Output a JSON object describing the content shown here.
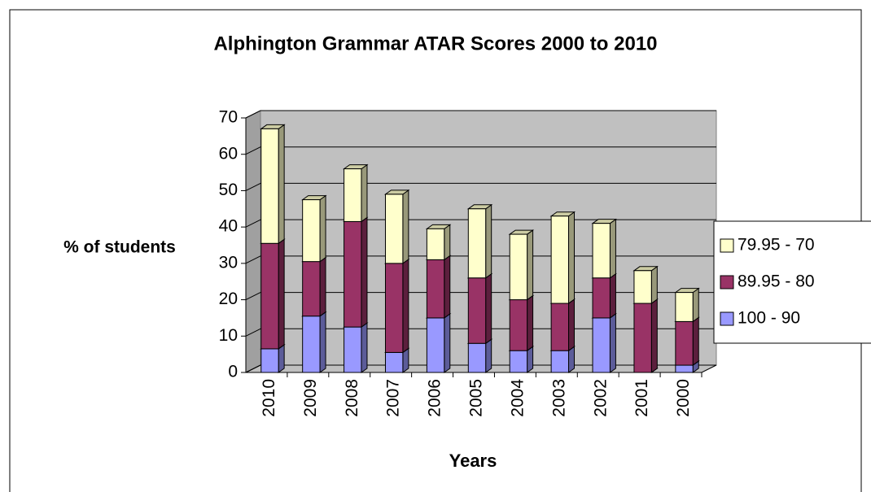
{
  "chart_data": {
    "type": "bar3d_stacked",
    "title": "Alphington Grammar ATAR Scores 2000 to 2010",
    "x_label": "Years",
    "y_label": "% of students",
    "categories": [
      "2010",
      "2009",
      "2008",
      "2007",
      "2006",
      "2005",
      "2004",
      "2003",
      "2002",
      "2001",
      "2000"
    ],
    "series": [
      {
        "name": "100 - 90",
        "color": "#9999ff",
        "values": [
          6.5,
          15.5,
          12.5,
          5.5,
          15,
          8,
          6,
          6,
          15,
          0,
          2
        ]
      },
      {
        "name": "89.95 - 80",
        "color": "#993366",
        "values": [
          29,
          15,
          29,
          24.5,
          16,
          18,
          14,
          13,
          11,
          19,
          12
        ]
      },
      {
        "name": "79.95 - 70",
        "color": "#ffffcc",
        "values": [
          31.5,
          17,
          14.5,
          19,
          8.5,
          19,
          18,
          24,
          15,
          9,
          8
        ]
      }
    ],
    "ylim": [
      0,
      70
    ],
    "yticks": [
      0,
      10,
      20,
      30,
      40,
      50,
      60,
      70
    ],
    "grid": true,
    "legend": "right"
  }
}
